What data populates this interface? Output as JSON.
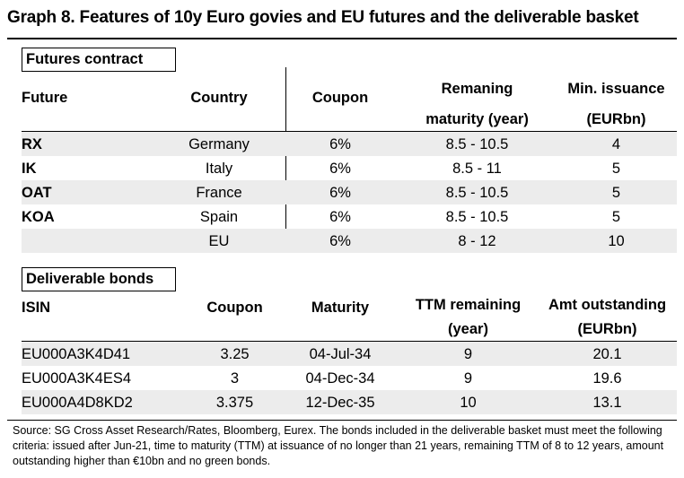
{
  "title": "Graph 8. Features of 10y Euro govies and EU futures and the deliverable basket",
  "futures_section": {
    "label": "Futures contract",
    "headers": {
      "future": "Future",
      "country": "Country",
      "coupon": "Coupon",
      "maturity_line1": "Remaning",
      "maturity_line2": "maturity (year)",
      "issuance_line1": "Min. issuance",
      "issuance_line2": "(EURbn)"
    },
    "rows": [
      {
        "future": "RX",
        "country": "Germany",
        "coupon": "6%",
        "maturity": "8.5 - 10.5",
        "issuance": "4"
      },
      {
        "future": "IK",
        "country": "Italy",
        "coupon": "6%",
        "maturity": "8.5 - 11",
        "issuance": "5"
      },
      {
        "future": "OAT",
        "country": "France",
        "coupon": "6%",
        "maturity": "8.5 - 10.5",
        "issuance": "5"
      },
      {
        "future": "KOA",
        "country": "Spain",
        "coupon": "6%",
        "maturity": "8.5 - 10.5",
        "issuance": "5"
      },
      {
        "future": "",
        "country": "EU",
        "coupon": "6%",
        "maturity": "8 - 12",
        "issuance": "10"
      }
    ]
  },
  "bonds_section": {
    "label": "Deliverable bonds",
    "headers": {
      "isin": "ISIN",
      "coupon": "Coupon",
      "maturity": "Maturity",
      "ttm_line1": "TTM remaining",
      "ttm_line2": "(year)",
      "amt_line1": "Amt outstanding",
      "amt_line2": "(EURbn)"
    },
    "rows": [
      {
        "isin": "EU000A3K4D41",
        "coupon": "3.25",
        "maturity": "04-Jul-34",
        "ttm": "9",
        "amt": "20.1"
      },
      {
        "isin": "EU000A3K4ES4",
        "coupon": "3",
        "maturity": "04-Dec-34",
        "ttm": "9",
        "amt": "19.6"
      },
      {
        "isin": "EU000A4D8KD2",
        "coupon": "3.375",
        "maturity": "12-Dec-35",
        "ttm": "10",
        "amt": "13.1"
      }
    ]
  },
  "source": "Source: SG Cross Asset Research/Rates, Bloomberg, Eurex. The bonds included in the deliverable basket must meet the following criteria: issued after Jun-21, time to maturity (TTM) at issuance of no longer than 21 years, remaining TTM of 8 to 12 years, amount outstanding higher than €10bn and no green bonds."
}
